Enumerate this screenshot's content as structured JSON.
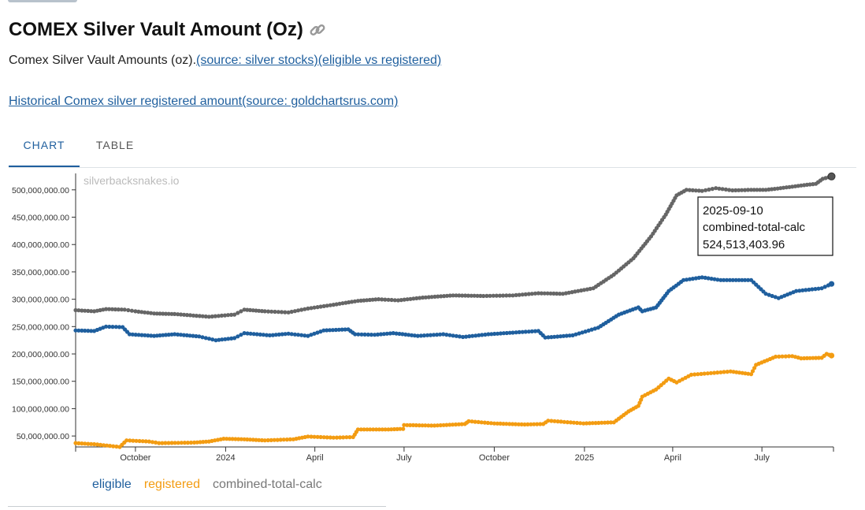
{
  "page": {
    "title": "COMEX Silver Vault Amount (Oz)",
    "subtitle_text": "Comex Silver Vault Amounts (oz).",
    "subtitle_link": "(source: silver stocks)(eligible vs registered)",
    "history_link": "Historical Comex silver registered amount(source: goldchartsrus.com)",
    "tabs": [
      "CHART",
      "TABLE"
    ],
    "active_tab": "CHART",
    "watermark": "silverbacksnakes.io"
  },
  "tooltip": {
    "date": "2025-09-10",
    "series": "combined-total-calc",
    "value": "524,513,403.96"
  },
  "colors": {
    "eligible": "#1f5f9e",
    "registered": "#f39c12",
    "combined": "#666666",
    "link": "#1f5f9e"
  },
  "chart_data": {
    "type": "line",
    "x_type": "date",
    "xlim": [
      "2023-08-01",
      "2025-09-12"
    ],
    "ylim": [
      30000000,
      530000000
    ],
    "y_ticks": [
      50000000,
      100000000,
      150000000,
      200000000,
      250000000,
      300000000,
      350000000,
      400000000,
      450000000,
      500000000
    ],
    "y_tick_labels": [
      "50,000,000.00",
      "100,000,000.00",
      "150,000,000.00",
      "200,000,000.00",
      "250,000,000.00",
      "300,000,000.00",
      "350,000,000.00",
      "400,000,000.00",
      "450,000,000.00",
      "500,000,000.00"
    ],
    "x_ticks": [
      "2023-10-01",
      "2024-01-01",
      "2024-04-01",
      "2024-07-01",
      "2024-10-01",
      "2025-01-01",
      "2025-04-01",
      "2025-07-01"
    ],
    "x_tick_labels": [
      "October",
      "2024",
      "April",
      "July",
      "October",
      "2025",
      "April",
      "July"
    ],
    "legend": [
      "eligible",
      "registered",
      "combined-total-calc"
    ],
    "legend_position": "bottom-left",
    "grid": false,
    "series": [
      {
        "name": "eligible",
        "color": "#1f5f9e",
        "points": [
          [
            "2023-08-01",
            243000000
          ],
          [
            "2023-08-20",
            242000000
          ],
          [
            "2023-09-01",
            250000000
          ],
          [
            "2023-09-18",
            249000000
          ],
          [
            "2023-09-25",
            236000000
          ],
          [
            "2023-10-20",
            233000000
          ],
          [
            "2023-11-10",
            236000000
          ],
          [
            "2023-12-05",
            232000000
          ],
          [
            "2023-12-22",
            225000000
          ],
          [
            "2024-01-10",
            229000000
          ],
          [
            "2024-01-20",
            238000000
          ],
          [
            "2024-02-15",
            234000000
          ],
          [
            "2024-03-05",
            237000000
          ],
          [
            "2024-03-25",
            233000000
          ],
          [
            "2024-04-10",
            243000000
          ],
          [
            "2024-05-05",
            245000000
          ],
          [
            "2024-05-12",
            236000000
          ],
          [
            "2024-06-01",
            235000000
          ],
          [
            "2024-06-20",
            238000000
          ],
          [
            "2024-07-15",
            233000000
          ],
          [
            "2024-08-10",
            236000000
          ],
          [
            "2024-08-30",
            231000000
          ],
          [
            "2024-09-25",
            236000000
          ],
          [
            "2024-10-20",
            239000000
          ],
          [
            "2024-11-15",
            242000000
          ],
          [
            "2024-11-22",
            230000000
          ],
          [
            "2024-12-20",
            234000000
          ],
          [
            "2025-01-15",
            248000000
          ],
          [
            "2025-02-05",
            272000000
          ],
          [
            "2025-02-25",
            285000000
          ],
          [
            "2025-03-01",
            278000000
          ],
          [
            "2025-03-15",
            285000000
          ],
          [
            "2025-03-28",
            315000000
          ],
          [
            "2025-04-12",
            335000000
          ],
          [
            "2025-05-01",
            340000000
          ],
          [
            "2025-05-20",
            335000000
          ],
          [
            "2025-06-20",
            335000000
          ],
          [
            "2025-07-05",
            310000000
          ],
          [
            "2025-07-18",
            302000000
          ],
          [
            "2025-08-05",
            315000000
          ],
          [
            "2025-08-31",
            320000000
          ],
          [
            "2025-09-10",
            328000000
          ]
        ]
      },
      {
        "name": "registered",
        "color": "#f39c12",
        "points": [
          [
            "2023-08-01",
            37000000
          ],
          [
            "2023-08-20",
            35000000
          ],
          [
            "2023-09-05",
            32000000
          ],
          [
            "2023-09-15",
            30000000
          ],
          [
            "2023-09-22",
            42000000
          ],
          [
            "2023-10-15",
            40000000
          ],
          [
            "2023-10-25",
            37000000
          ],
          [
            "2023-11-30",
            38000000
          ],
          [
            "2023-12-15",
            40000000
          ],
          [
            "2023-12-30",
            45000000
          ],
          [
            "2024-01-20",
            44000000
          ],
          [
            "2024-02-10",
            42000000
          ],
          [
            "2024-03-10",
            44000000
          ],
          [
            "2024-03-25",
            49000000
          ],
          [
            "2024-04-20",
            47000000
          ],
          [
            "2024-05-10",
            48000000
          ],
          [
            "2024-05-15",
            62000000
          ],
          [
            "2024-06-15",
            62000000
          ],
          [
            "2024-06-30",
            63000000
          ],
          [
            "2024-07-01",
            70000000
          ],
          [
            "2024-08-01",
            69000000
          ],
          [
            "2024-09-01",
            72000000
          ],
          [
            "2024-09-05",
            77000000
          ],
          [
            "2024-10-01",
            73000000
          ],
          [
            "2024-11-01",
            71000000
          ],
          [
            "2024-11-20",
            72000000
          ],
          [
            "2024-11-25",
            78000000
          ],
          [
            "2024-12-31",
            73000000
          ],
          [
            "2025-01-31",
            75000000
          ],
          [
            "2025-02-15",
            95000000
          ],
          [
            "2025-02-25",
            105000000
          ],
          [
            "2025-03-01",
            122000000
          ],
          [
            "2025-03-15",
            135000000
          ],
          [
            "2025-03-28",
            155000000
          ],
          [
            "2025-04-05",
            148000000
          ],
          [
            "2025-04-20",
            162000000
          ],
          [
            "2025-05-30",
            168000000
          ],
          [
            "2025-06-20",
            163000000
          ],
          [
            "2025-06-25",
            180000000
          ],
          [
            "2025-07-15",
            195000000
          ],
          [
            "2025-08-01",
            196000000
          ],
          [
            "2025-08-10",
            192000000
          ],
          [
            "2025-08-31",
            193000000
          ],
          [
            "2025-09-05",
            200000000
          ],
          [
            "2025-09-10",
            197000000
          ]
        ]
      },
      {
        "name": "combined-total-calc",
        "color": "#666666",
        "points": [
          [
            "2023-08-01",
            280000000
          ],
          [
            "2023-08-20",
            278000000
          ],
          [
            "2023-09-01",
            282000000
          ],
          [
            "2023-09-20",
            281000000
          ],
          [
            "2023-10-01",
            278000000
          ],
          [
            "2023-10-20",
            274000000
          ],
          [
            "2023-11-10",
            273000000
          ],
          [
            "2023-12-15",
            268000000
          ],
          [
            "2024-01-10",
            272000000
          ],
          [
            "2024-01-20",
            281000000
          ],
          [
            "2024-02-10",
            278000000
          ],
          [
            "2024-03-05",
            276000000
          ],
          [
            "2024-03-25",
            283000000
          ],
          [
            "2024-04-20",
            290000000
          ],
          [
            "2024-05-15",
            297000000
          ],
          [
            "2024-06-05",
            300000000
          ],
          [
            "2024-06-25",
            298000000
          ],
          [
            "2024-07-20",
            303000000
          ],
          [
            "2024-08-20",
            307000000
          ],
          [
            "2024-09-20",
            306000000
          ],
          [
            "2024-10-20",
            307000000
          ],
          [
            "2024-11-15",
            311000000
          ],
          [
            "2024-12-10",
            310000000
          ],
          [
            "2025-01-10",
            320000000
          ],
          [
            "2025-01-31",
            345000000
          ],
          [
            "2025-02-20",
            375000000
          ],
          [
            "2025-03-10",
            415000000
          ],
          [
            "2025-03-25",
            455000000
          ],
          [
            "2025-04-05",
            490000000
          ],
          [
            "2025-04-15",
            500000000
          ],
          [
            "2025-05-01",
            498000000
          ],
          [
            "2025-05-15",
            503000000
          ],
          [
            "2025-06-01",
            499000000
          ],
          [
            "2025-06-20",
            500000000
          ],
          [
            "2025-07-05",
            500000000
          ],
          [
            "2025-07-20",
            503000000
          ],
          [
            "2025-08-10",
            508000000
          ],
          [
            "2025-08-25",
            511000000
          ],
          [
            "2025-09-01",
            520000000
          ],
          [
            "2025-09-10",
            524513403.96
          ]
        ]
      }
    ]
  }
}
